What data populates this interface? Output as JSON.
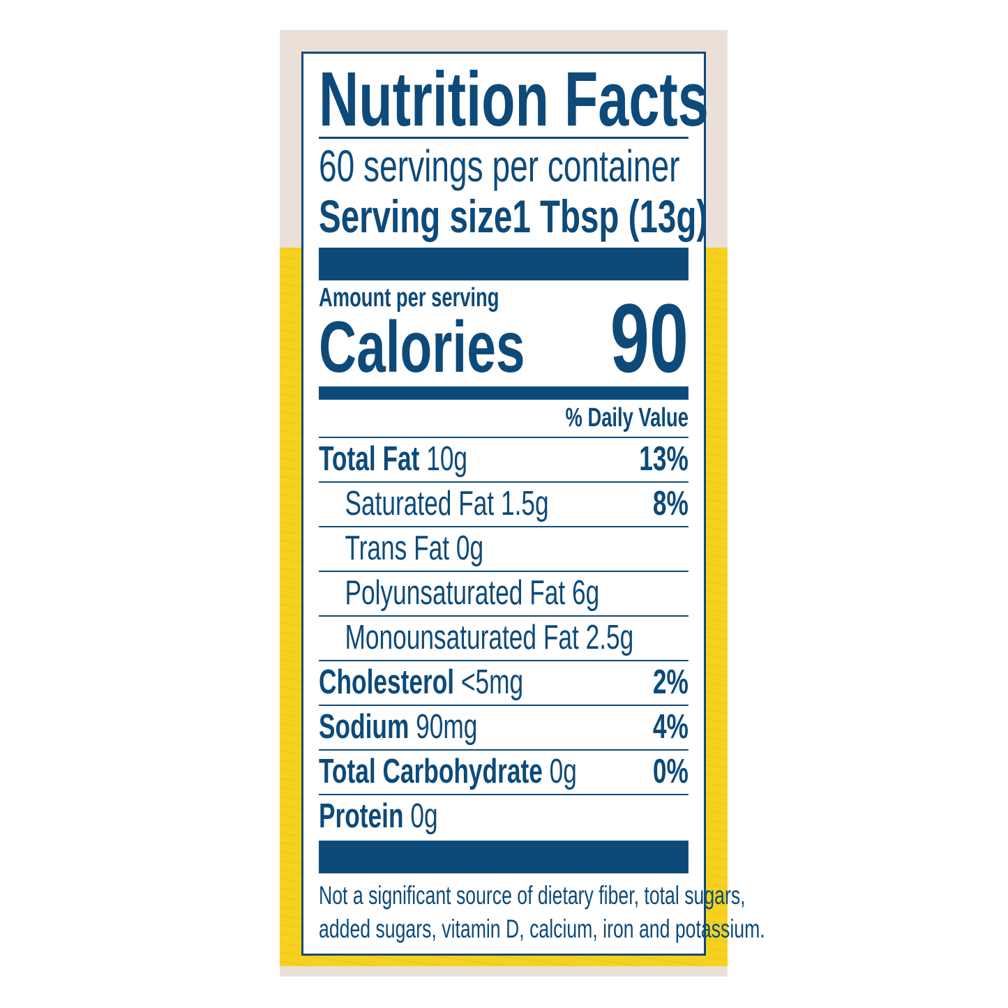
{
  "title": "Nutrition Facts",
  "servings_per_container": "60 servings per container",
  "serving_size": {
    "label": "Serving size",
    "value": "1 Tbsp (13g)"
  },
  "amount_per_serving": "Amount per serving",
  "calories": {
    "label": "Calories",
    "value": "90"
  },
  "daily_value_header": "% Daily Value",
  "nutrients": [
    {
      "name": "Total Fat",
      "amount": "10g",
      "dv": "13%",
      "bold": true,
      "indent": false
    },
    {
      "name": "Saturated Fat 1.5g",
      "amount": "",
      "dv": "8%",
      "bold": false,
      "indent": true
    },
    {
      "name": "Trans Fat 0g",
      "amount": "",
      "dv": "",
      "bold": false,
      "indent": true
    },
    {
      "name": "Polyunsaturated Fat 6g",
      "amount": "",
      "dv": "",
      "bold": false,
      "indent": true
    },
    {
      "name": "Monounsaturated Fat 2.5g",
      "amount": "",
      "dv": "",
      "bold": false,
      "indent": true
    },
    {
      "name": "Cholesterol",
      "amount": "<5mg",
      "dv": "2%",
      "bold": true,
      "indent": false
    },
    {
      "name": "Sodium",
      "amount": "90mg",
      "dv": "4%",
      "bold": true,
      "indent": false
    },
    {
      "name": "Total Carbohydrate",
      "amount": "0g",
      "dv": "0%",
      "bold": true,
      "indent": false
    },
    {
      "name": "Protein",
      "amount": "0g",
      "dv": "",
      "bold": true,
      "indent": false
    }
  ],
  "footnote": [
    "Not a significant source of dietary fiber, total sugars,",
    "added sugars, vitamin D, calcium, iron and potassium."
  ],
  "colors": {
    "ink": "#0d4a7a",
    "background_top": "#ebe0d8",
    "background_yellow": "#f6d21e"
  }
}
